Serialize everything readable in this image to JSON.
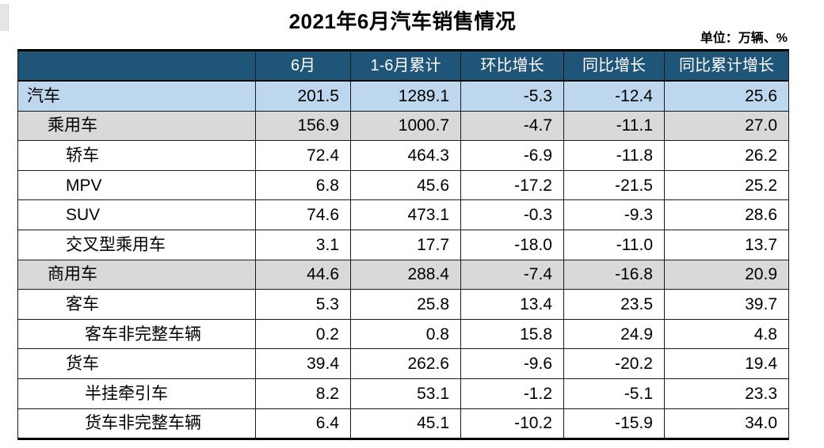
{
  "page": {
    "title": "2021年6月汽车销售情况",
    "unit_note": "单位：万辆、%"
  },
  "colors": {
    "header_bg": "#1F5578",
    "header_text": "#FFFFFF",
    "row_highlight_blue": "#BDD7EE",
    "row_highlight_gray": "#D9D9D9",
    "border": "#1A1A1A"
  },
  "chart_data": {
    "type": "table",
    "title": "2021年6月汽车销售情况",
    "unit": "万辆、%",
    "columns": [
      "",
      "6月",
      "1-6月累计",
      "环比增长",
      "同比增长",
      "同比累计增长"
    ],
    "rows": [
      {
        "label": "汽车",
        "level": 0,
        "highlight": "blue",
        "values": [
          "201.5",
          "1289.1",
          "-5.3",
          "-12.4",
          "25.6"
        ]
      },
      {
        "label": "乘用车",
        "level": 1,
        "highlight": "gray",
        "values": [
          "156.9",
          "1000.7",
          "-4.7",
          "-11.1",
          "27.0"
        ]
      },
      {
        "label": "轿车",
        "level": 2,
        "highlight": "none",
        "values": [
          "72.4",
          "464.3",
          "-6.9",
          "-11.8",
          "26.2"
        ]
      },
      {
        "label": "MPV",
        "level": 2,
        "highlight": "none",
        "values": [
          "6.8",
          "45.6",
          "-17.2",
          "-21.5",
          "25.2"
        ]
      },
      {
        "label": "SUV",
        "level": 2,
        "highlight": "none",
        "values": [
          "74.6",
          "473.1",
          "-0.3",
          "-9.3",
          "28.6"
        ]
      },
      {
        "label": "交叉型乘用车",
        "level": 2,
        "highlight": "none",
        "values": [
          "3.1",
          "17.7",
          "-18.0",
          "-11.0",
          "13.7"
        ]
      },
      {
        "label": "商用车",
        "level": 1,
        "highlight": "gray",
        "values": [
          "44.6",
          "288.4",
          "-7.4",
          "-16.8",
          "20.9"
        ]
      },
      {
        "label": "客车",
        "level": 2,
        "highlight": "none",
        "values": [
          "5.3",
          "25.8",
          "13.4",
          "23.5",
          "39.7"
        ]
      },
      {
        "label": "客车非完整车辆",
        "level": 3,
        "highlight": "none",
        "values": [
          "0.2",
          "0.8",
          "15.8",
          "24.9",
          "4.8"
        ]
      },
      {
        "label": "货车",
        "level": 2,
        "highlight": "none",
        "values": [
          "39.4",
          "262.6",
          "-9.6",
          "-20.2",
          "19.4"
        ]
      },
      {
        "label": "半挂牵引车",
        "level": 3,
        "highlight": "none",
        "values": [
          "8.2",
          "53.1",
          "-1.2",
          "-5.1",
          "23.3"
        ]
      },
      {
        "label": "货车非完整车辆",
        "level": 3,
        "highlight": "none",
        "values": [
          "6.4",
          "45.1",
          "-10.2",
          "-15.9",
          "34.0"
        ]
      }
    ]
  }
}
